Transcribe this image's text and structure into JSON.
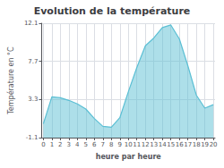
{
  "chart_data": {
    "type": "area",
    "title": "Evolution de la température",
    "xlabel": "heure par heure",
    "ylabel": "Température en °C",
    "x": [
      0,
      1,
      2,
      3,
      4,
      5,
      6,
      7,
      8,
      9,
      10,
      11,
      12,
      13,
      14,
      15,
      16,
      17,
      18,
      19,
      20
    ],
    "values": [
      0.5,
      3.6,
      3.5,
      3.2,
      2.8,
      2.2,
      1.1,
      0.2,
      0.1,
      1.2,
      4.2,
      7.0,
      9.5,
      10.4,
      11.6,
      11.9,
      10.3,
      7.2,
      3.8,
      2.3,
      2.7
    ],
    "color": "#5bbfd4",
    "xlim": [
      -0.2,
      20.2
    ],
    "xticks": [
      0,
      1,
      2,
      3,
      4,
      5,
      6,
      7,
      8,
      9,
      10,
      11,
      12,
      13,
      14,
      15,
      16,
      17,
      18,
      19,
      20
    ],
    "ylim": [
      -1.1,
      12.1
    ],
    "yticks": [
      -1.1,
      3.3,
      7.7,
      12.1
    ],
    "grid": true
  }
}
